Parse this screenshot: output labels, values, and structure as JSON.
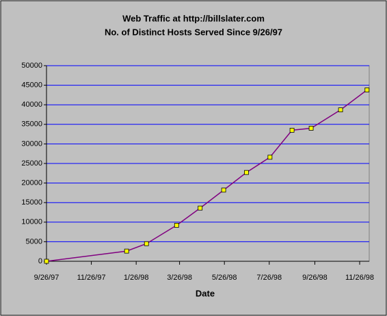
{
  "chart_data": {
    "type": "line",
    "title": "Web Traffic at http://billslater.com",
    "subtitle": "No. of Distinct Hosts Served Since 9/26/97",
    "x_label": "Date",
    "x": [
      "1997-09-26",
      "1998-01-13",
      "1998-02-09",
      "1998-03-22",
      "1998-04-23",
      "1998-05-25",
      "1998-06-25",
      "1998-07-27",
      "1998-08-26",
      "1998-09-21",
      "1998-10-31",
      "1998-12-06"
    ],
    "series": [
      {
        "name": "Distinct Hosts",
        "color": "#800080",
        "values": [
          0,
          2600,
          4500,
          9200,
          13600,
          18200,
          22700,
          26600,
          33500,
          34000,
          38700,
          43800
        ]
      }
    ],
    "marker_color": "#ffff00",
    "xlim": [
      "1997-09-26",
      "1998-12-09"
    ],
    "xticks": [
      {
        "value": "1997-09-26",
        "label": "9/26/97"
      },
      {
        "value": "1997-11-26",
        "label": "11/26/97"
      },
      {
        "value": "1998-01-26",
        "label": "1/26/98"
      },
      {
        "value": "1998-03-26",
        "label": "3/26/98"
      },
      {
        "value": "1998-05-26",
        "label": "5/26/98"
      },
      {
        "value": "1998-07-26",
        "label": "7/26/98"
      },
      {
        "value": "1998-09-26",
        "label": "9/26/98"
      },
      {
        "value": "1998-11-26",
        "label": "11/26/98"
      }
    ],
    "ylim": [
      0,
      50000
    ],
    "yticks": [
      0,
      5000,
      10000,
      15000,
      20000,
      25000,
      30000,
      35000,
      40000,
      45000,
      50000
    ],
    "grid": true,
    "grid_color": "#0000ff"
  }
}
